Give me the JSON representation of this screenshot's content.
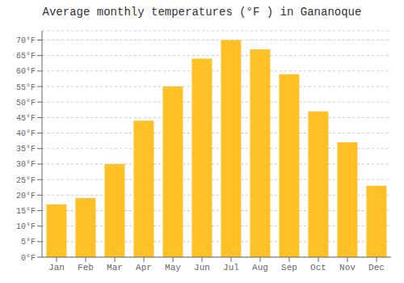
{
  "chart_data": {
    "type": "bar",
    "title": "Average monthly temperatures (°F ) in Gananoque",
    "categories": [
      "Jan",
      "Feb",
      "Mar",
      "Apr",
      "May",
      "Jun",
      "Jul",
      "Aug",
      "Sep",
      "Oct",
      "Nov",
      "Dec"
    ],
    "values": [
      17,
      19,
      30,
      44,
      55,
      64,
      70,
      67,
      59,
      47,
      37,
      23
    ],
    "color": "#FFC125",
    "ylim": [
      0,
      73
    ],
    "yticks": [
      {
        "value": 0,
        "label": "0°F"
      },
      {
        "value": 5,
        "label": "5°F"
      },
      {
        "value": 10,
        "label": "10°F"
      },
      {
        "value": 15,
        "label": "15°F"
      },
      {
        "value": 20,
        "label": "20°F"
      },
      {
        "value": 25,
        "label": "25°F"
      },
      {
        "value": 30,
        "label": "30°F"
      },
      {
        "value": 35,
        "label": "35°F"
      },
      {
        "value": 40,
        "label": "40°F"
      },
      {
        "value": 45,
        "label": "45°F"
      },
      {
        "value": 50,
        "label": "50°F"
      },
      {
        "value": 55,
        "label": "55°F"
      },
      {
        "value": 60,
        "label": "60°F"
      },
      {
        "value": 65,
        "label": "65°F"
      },
      {
        "value": 70,
        "label": "70°F"
      }
    ],
    "grid": true
  }
}
